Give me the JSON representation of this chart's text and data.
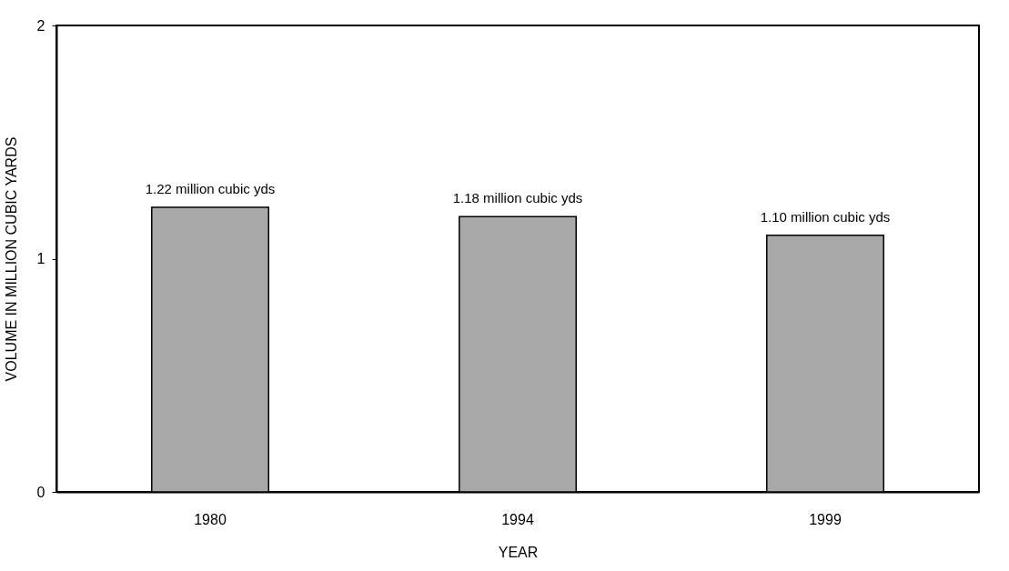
{
  "chart_data": {
    "type": "bar",
    "xlabel": "YEAR",
    "ylabel": "VOLUME IN MILLION CUBIC YARDS",
    "categories": [
      "1980",
      "1994",
      "1999"
    ],
    "values": [
      1.22,
      1.18,
      1.1
    ],
    "value_labels": [
      "1.22 million cubic yds",
      "1.18 million cubic yds",
      "1.10 million cubic yds"
    ],
    "color": "#a8a8a8",
    "ylim": [
      0,
      2
    ],
    "yticks": [
      0,
      1,
      2
    ],
    "grid": false
  }
}
